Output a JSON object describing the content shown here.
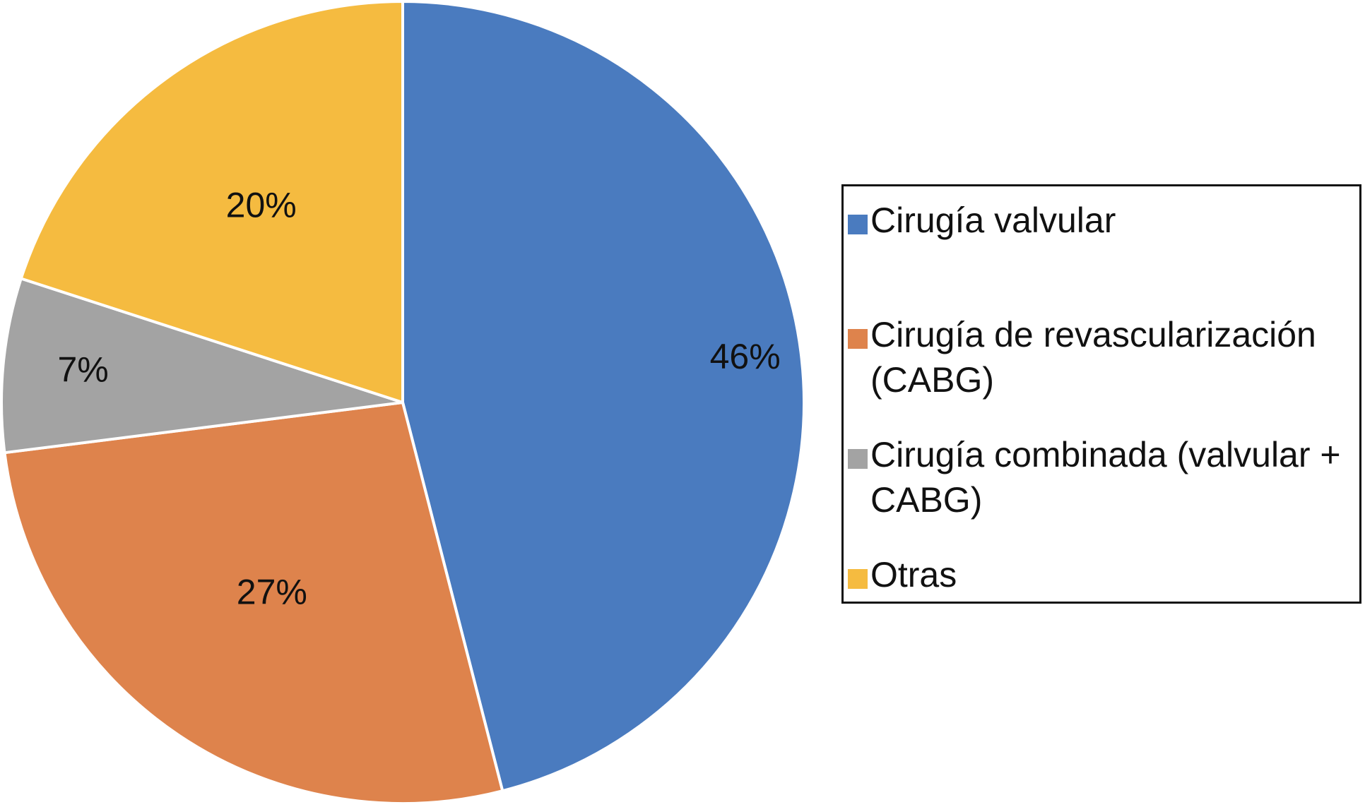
{
  "chart_data": {
    "type": "pie",
    "slices": [
      {
        "label": "Cirugía valvular",
        "value": 46,
        "display": "46%",
        "color": "#4A7BBF"
      },
      {
        "label": "Cirugía de revascularización (CABG)",
        "value": 27,
        "display": "27%",
        "color": "#DE834C"
      },
      {
        "label": "Cirugía combinada (valvular + CABG)",
        "value": 7,
        "display": "7%",
        "color": "#A3A3A3"
      },
      {
        "label": "Otras",
        "value": 20,
        "display": "20%",
        "color": "#F5BB40"
      }
    ],
    "legend_position": "right",
    "start_angle": "12 o'clock",
    "direction": "clockwise"
  }
}
